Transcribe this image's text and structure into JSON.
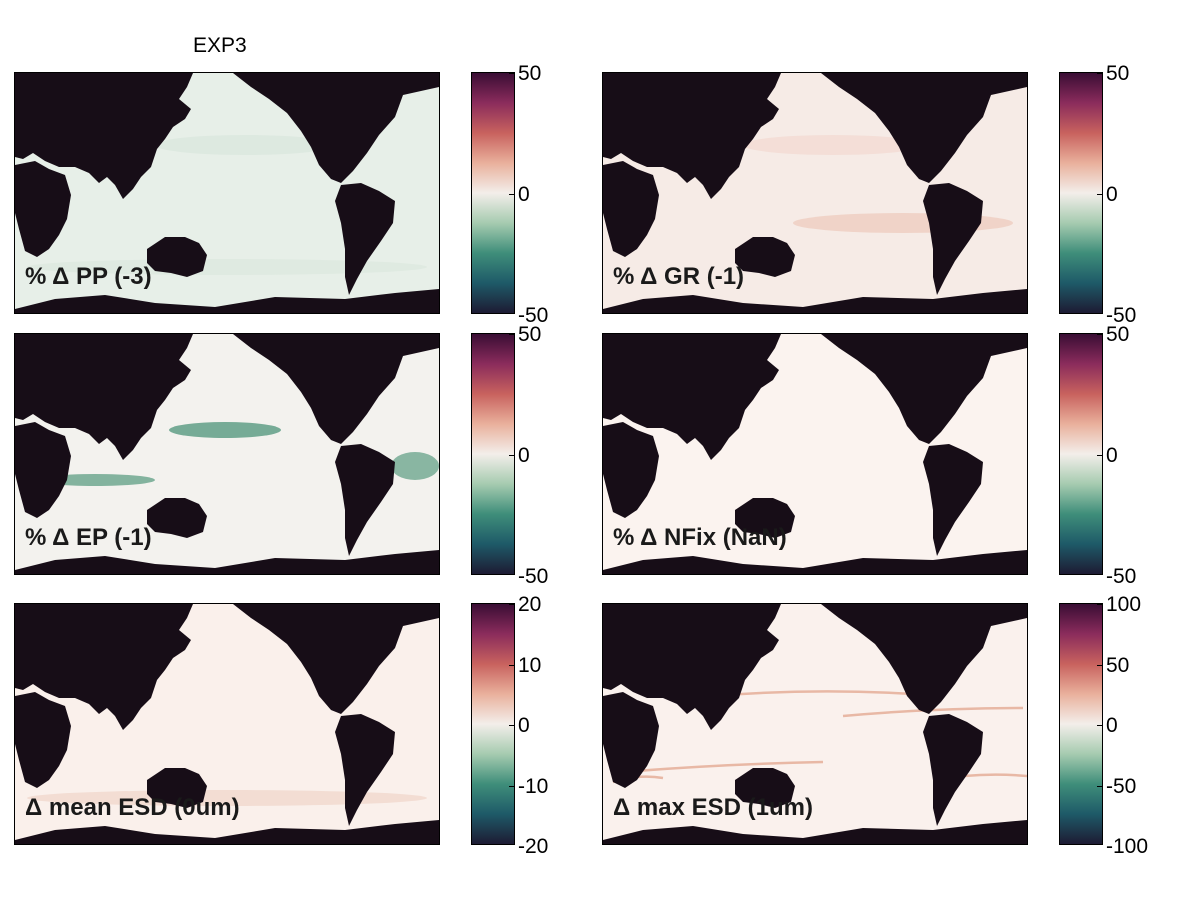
{
  "figure": {
    "title": "EXP3",
    "colors": {
      "land": "#170d17",
      "ocean_neutral": "#fbf3ef",
      "colormap": [
        "#1d1b33",
        "#1e5a68",
        "#3f8e7a",
        "#a6cbb0",
        "#f3eeea",
        "#e9b09c",
        "#c8625e",
        "#8b2c5c",
        "#3a0d34"
      ]
    }
  },
  "panels": [
    {
      "id": "pp",
      "label": "% Δ PP (-3)",
      "colorbar": {
        "min": -50,
        "max": 50,
        "ticks": [
          "50",
          "0",
          "-50"
        ]
      },
      "ocean_tint": "#e7efe8",
      "anomaly_bands": [
        {
          "region": "north-pacific",
          "tone": "#dbe8de"
        },
        {
          "region": "southern-ocean",
          "tone": "#dde9df"
        }
      ]
    },
    {
      "id": "gr",
      "label": "% Δ GR (-1)",
      "colorbar": {
        "min": -50,
        "max": 50,
        "ticks": [
          "50",
          "0",
          "-50"
        ]
      },
      "ocean_tint": "#f6ebe6",
      "anomaly_bands": [
        {
          "region": "south-pacific",
          "tone": "#efcfc2"
        },
        {
          "region": "north-pacific",
          "tone": "#f3dcd3"
        }
      ]
    },
    {
      "id": "ep",
      "label": "% Δ EP (-1)",
      "colorbar": {
        "min": -50,
        "max": 50,
        "ticks": [
          "50",
          "0",
          "-50"
        ]
      },
      "ocean_tint": "#f3f2ee",
      "anomaly_bands": [
        {
          "region": "north-pacific-west",
          "tone": "#5f9f86"
        },
        {
          "region": "indian-ocean",
          "tone": "#6fa88f"
        },
        {
          "region": "north-atlantic",
          "tone": "#76ab94"
        }
      ]
    },
    {
      "id": "nfix",
      "label": "% Δ NFix (NaN)",
      "colorbar": {
        "min": -50,
        "max": 50,
        "ticks": [
          "50",
          "0",
          "-50"
        ]
      },
      "ocean_tint": "#fbf3ef",
      "anomaly_bands": []
    },
    {
      "id": "mean-esd",
      "label": "Δ mean ESD (0um)",
      "colorbar": {
        "min": -20,
        "max": 20,
        "ticks": [
          "20",
          "10",
          "0",
          "-10",
          "-20"
        ]
      },
      "ocean_tint": "#faf0eb",
      "anomaly_bands": [
        {
          "region": "southern-ocean",
          "tone": "#f1d9cf"
        }
      ]
    },
    {
      "id": "max-esd",
      "label": "Δ max ESD (1um)",
      "colorbar": {
        "min": -100,
        "max": 100,
        "ticks": [
          "100",
          "50",
          "0",
          "-50",
          "-100"
        ]
      },
      "ocean_tint": "#faf1ed",
      "anomaly_bands": [
        {
          "region": "streaks",
          "tone": "#e8b8a5"
        }
      ]
    }
  ]
}
